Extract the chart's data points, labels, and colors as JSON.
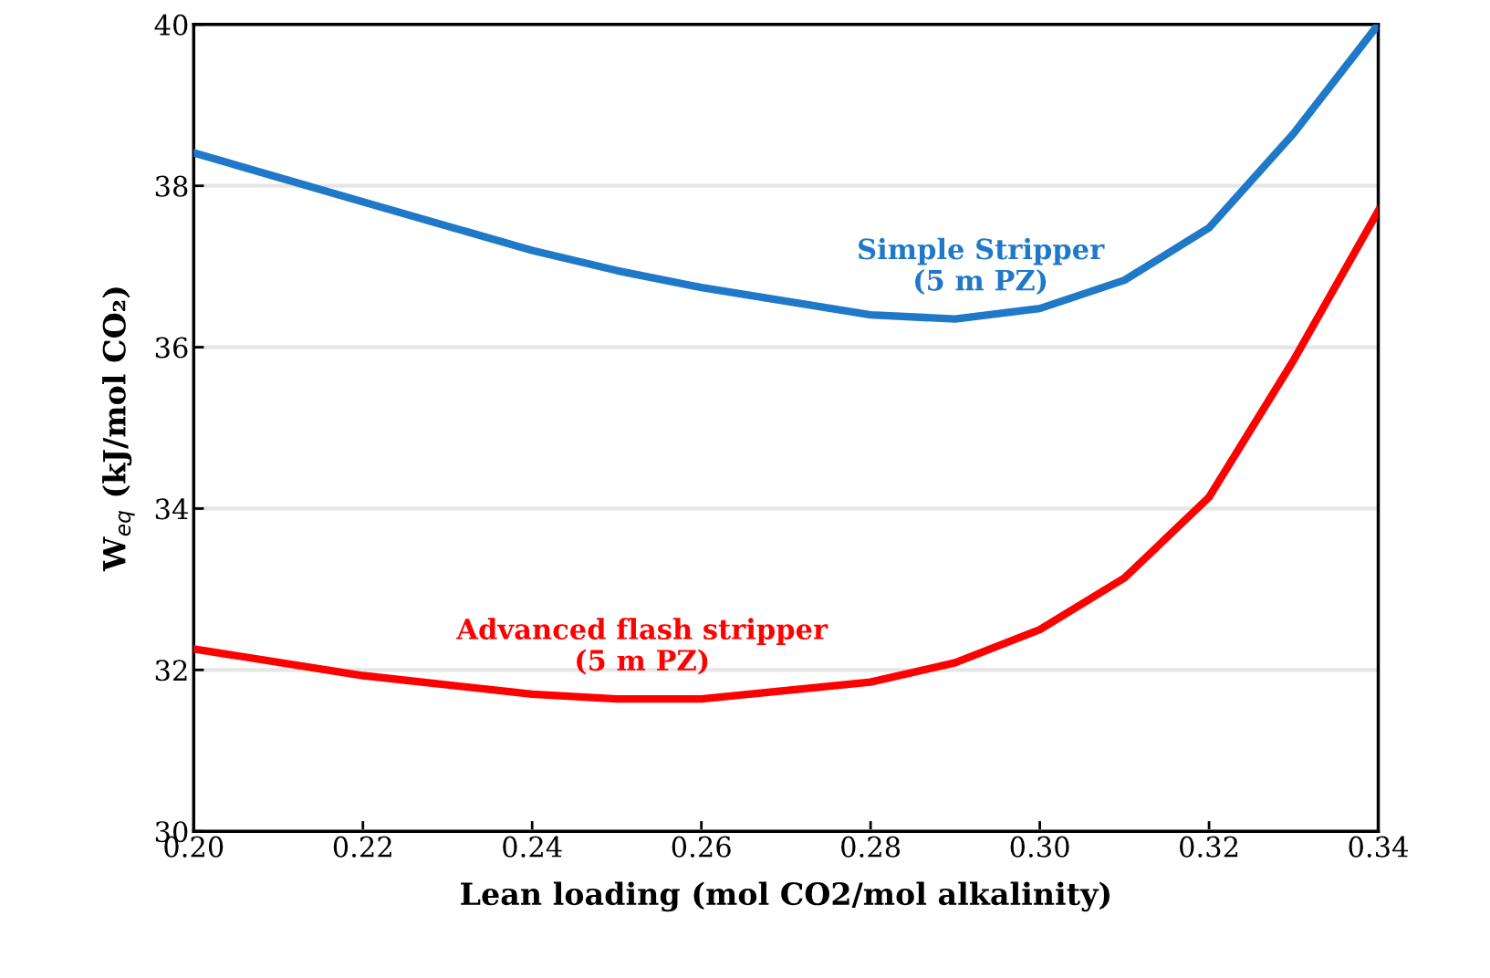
{
  "chart_data": {
    "type": "line",
    "xlabel": "Lean loading (mol CO2/mol alkalinity)",
    "ylabel": "W$_{eq}$ (kJ/mol CO₂)",
    "x": [
      0.2,
      0.22,
      0.24,
      0.25,
      0.26,
      0.28,
      0.29,
      0.3,
      0.31,
      0.32,
      0.33,
      0.34
    ],
    "series": [
      {
        "name": "Simple Stripper\n(5 m PZ)",
        "color": "#1f78c8",
        "values": [
          38.41,
          37.8,
          37.2,
          36.95,
          36.74,
          36.4,
          36.35,
          36.48,
          36.83,
          37.48,
          38.65,
          40.0
        ]
      },
      {
        "name": "Advanced flash stripper\n(5 m PZ)",
        "color": "#ff0000",
        "values": [
          32.26,
          31.93,
          31.7,
          31.64,
          31.64,
          31.85,
          32.09,
          32.5,
          33.14,
          34.14,
          35.84,
          37.69
        ]
      }
    ],
    "xlim": [
      0.2,
      0.34
    ],
    "ylim": [
      30,
      40
    ],
    "xticks": [
      {
        "value": 0.2,
        "label": "0.20"
      },
      {
        "value": 0.22,
        "label": "0.22"
      },
      {
        "value": 0.24,
        "label": "0.24"
      },
      {
        "value": 0.26,
        "label": "0.26"
      },
      {
        "value": 0.28,
        "label": "0.28"
      },
      {
        "value": 0.3,
        "label": "0.30"
      },
      {
        "value": 0.32,
        "label": "0.32"
      },
      {
        "value": 0.34,
        "label": "0.34"
      }
    ],
    "yticks": [
      30,
      32,
      34,
      36,
      38,
      40
    ],
    "grid": "y",
    "legend": false,
    "marker": "none",
    "line_style": "solid"
  }
}
